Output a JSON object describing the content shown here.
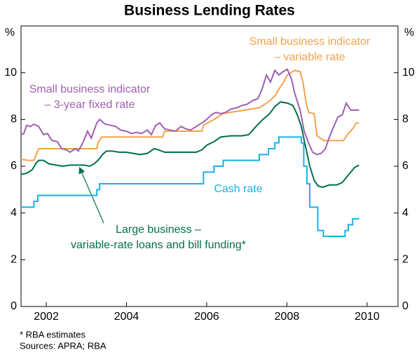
{
  "chart_data": {
    "type": "line",
    "title": "Business Lending Rates",
    "y_unit": "%",
    "xlim": [
      2001.37,
      2010.77
    ],
    "xticks": [
      2002,
      2004,
      2006,
      2008,
      2010
    ],
    "ylim": [
      0,
      12
    ],
    "yticks": [
      0,
      2,
      4,
      6,
      8,
      10
    ],
    "y2lim": [
      0,
      12
    ],
    "y2ticks": [
      0,
      2,
      4,
      6,
      8,
      10
    ],
    "series": [
      {
        "color": "#f5a24b",
        "x": [
          2001.37,
          2001.54,
          2001.69,
          2001.75,
          2001.81,
          2003.26,
          2003.29,
          2003.38,
          2004.9,
          2004.95,
          2005.88,
          2005.92,
          2006.18,
          2006.4,
          2007.31,
          2007.54,
          2007.7,
          2007.8,
          2007.92,
          2008.01,
          2008.19,
          2008.33,
          2008.4,
          2008.47,
          2008.54,
          2008.68,
          2008.75,
          2008.92,
          2009.41,
          2009.53,
          2009.64,
          2009.73,
          2009.8
        ],
        "values": [
          6.3,
          6.25,
          6.25,
          6.5,
          6.75,
          6.75,
          7.0,
          7.25,
          7.25,
          7.5,
          7.5,
          7.75,
          8.0,
          8.25,
          8.5,
          8.75,
          9.0,
          9.3,
          9.6,
          9.9,
          10.1,
          10.05,
          9.6,
          8.8,
          8.3,
          8.25,
          7.3,
          7.1,
          7.1,
          7.4,
          7.6,
          7.85,
          7.85
        ]
      },
      {
        "color": "#9e5fb0",
        "x": [
          2001.37,
          2001.44,
          2001.51,
          2001.61,
          2001.69,
          2001.81,
          2001.93,
          2002.03,
          2002.14,
          2002.28,
          2002.38,
          2002.51,
          2002.59,
          2002.73,
          2002.8,
          2002.91,
          2003.03,
          2003.12,
          2003.26,
          2003.33,
          2003.47,
          2003.61,
          2003.73,
          2003.85,
          2003.99,
          2004.13,
          2004.25,
          2004.38,
          2004.52,
          2004.62,
          2004.73,
          2004.83,
          2004.95,
          2005.08,
          2005.22,
          2005.36,
          2005.48,
          2005.6,
          2005.74,
          2005.88,
          2006.0,
          2006.12,
          2006.23,
          2006.35,
          2006.47,
          2006.61,
          2006.75,
          2006.88,
          2007.0,
          2007.14,
          2007.28,
          2007.38,
          2007.49,
          2007.59,
          2007.7,
          2007.8,
          2007.91,
          2008.01,
          2008.12,
          2008.19,
          2008.33,
          2008.43,
          2008.54,
          2008.64,
          2008.75,
          2008.85,
          2008.96,
          2009.06,
          2009.17,
          2009.27,
          2009.38,
          2009.48,
          2009.59,
          2009.69,
          2009.8
        ],
        "values": [
          7.35,
          7.4,
          7.75,
          7.7,
          7.8,
          7.7,
          7.35,
          7.4,
          7.1,
          7.05,
          6.75,
          6.7,
          6.6,
          6.75,
          6.65,
          7.0,
          7.5,
          7.2,
          7.85,
          8.0,
          7.8,
          7.75,
          7.7,
          7.55,
          7.5,
          7.4,
          7.45,
          7.4,
          7.55,
          7.35,
          7.75,
          7.85,
          7.6,
          7.55,
          7.5,
          7.7,
          7.6,
          7.55,
          7.7,
          7.85,
          8.0,
          8.2,
          8.3,
          8.25,
          8.3,
          8.45,
          8.5,
          8.6,
          8.65,
          8.8,
          8.9,
          9.3,
          9.9,
          9.6,
          10.1,
          9.9,
          10.05,
          10.15,
          9.7,
          9.15,
          8.4,
          7.5,
          7.0,
          6.6,
          6.5,
          6.55,
          6.75,
          7.25,
          7.7,
          8.1,
          8.2,
          8.7,
          8.4,
          8.4,
          8.4
        ]
      },
      {
        "color": "#00704a",
        "x": [
          2001.37,
          2001.51,
          2001.65,
          2001.75,
          2001.82,
          2001.93,
          2002.07,
          2002.24,
          2002.42,
          2002.59,
          2002.77,
          2002.94,
          2003.08,
          2003.19,
          2003.29,
          2003.4,
          2003.5,
          2003.64,
          2003.82,
          2003.99,
          2004.16,
          2004.34,
          2004.52,
          2004.69,
          2004.8,
          2004.95,
          2005.22,
          2005.48,
          2005.74,
          2005.88,
          2006.0,
          2006.18,
          2006.35,
          2006.61,
          2006.88,
          2007.05,
          2007.23,
          2007.4,
          2007.57,
          2007.7,
          2007.84,
          2008.01,
          2008.15,
          2008.26,
          2008.36,
          2008.47,
          2008.57,
          2008.68,
          2008.78,
          2008.89,
          2009.06,
          2009.24,
          2009.38,
          2009.52,
          2009.62,
          2009.69,
          2009.8
        ],
        "values": [
          5.65,
          5.7,
          5.85,
          6.15,
          6.25,
          6.25,
          6.1,
          6.05,
          6.0,
          6.05,
          6.05,
          6.05,
          6.0,
          6.1,
          6.25,
          6.5,
          6.65,
          6.65,
          6.6,
          6.6,
          6.55,
          6.5,
          6.55,
          6.75,
          6.7,
          6.6,
          6.6,
          6.6,
          6.6,
          6.7,
          6.9,
          7.05,
          7.25,
          7.3,
          7.3,
          7.35,
          7.7,
          8.0,
          8.25,
          8.55,
          8.75,
          8.7,
          8.6,
          8.2,
          7.7,
          6.8,
          6.0,
          5.4,
          5.15,
          5.1,
          5.2,
          5.2,
          5.3,
          5.6,
          5.8,
          5.95,
          6.05
        ]
      },
      {
        "color": "#19b1e3",
        "step": true,
        "x": [
          2001.37,
          2001.69,
          2001.79,
          2003.26,
          2003.33,
          2005.92,
          2006.18,
          2006.41,
          2007.31,
          2007.54,
          2007.7,
          2007.8,
          2008.36,
          2008.42,
          2008.5,
          2008.57,
          2008.77,
          2008.91,
          2009.45,
          2009.53,
          2009.64,
          2009.8
        ],
        "values": [
          4.25,
          4.5,
          4.75,
          5.0,
          5.25,
          5.75,
          6.0,
          6.25,
          6.5,
          6.75,
          7.0,
          7.25,
          7.0,
          6.0,
          5.25,
          4.25,
          3.25,
          3.0,
          3.25,
          3.5,
          3.75,
          3.75
        ]
      }
    ],
    "annotations": [
      {
        "lines": [
          "Small business indicator",
          "– variable rate"
        ],
        "color": "#f5a24b"
      },
      {
        "lines": [
          "Small business indicator",
          "– 3-year fixed rate"
        ],
        "color": "#9e5fb0"
      },
      {
        "lines": [
          "Cash rate"
        ],
        "color": "#19b1e3"
      },
      {
        "lines": [
          "Large business –",
          "variable-rate loans and bill funding*"
        ],
        "color": "#00704a"
      }
    ],
    "footnotes": [
      "*    RBA estimates",
      "Sources: APRA; RBA"
    ]
  }
}
